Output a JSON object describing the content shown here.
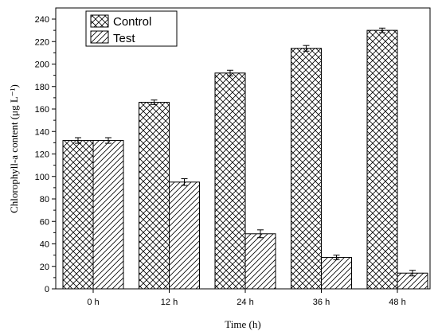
{
  "chart_data": {
    "type": "bar",
    "title": "",
    "xlabel": "Time  (h)",
    "ylabel": "Chlorophyll-a content (μg L⁻¹)",
    "categories": [
      "0 h",
      "12 h",
      "24 h",
      "36 h",
      "48 h"
    ],
    "ylim": [
      0,
      240
    ],
    "yticks": [
      0,
      20,
      40,
      60,
      80,
      100,
      120,
      140,
      160,
      180,
      200,
      220,
      240
    ],
    "grid": false,
    "legend_position": "top-left",
    "series": [
      {
        "name": "Control",
        "pattern": "crosshatch",
        "values": [
          132,
          166,
          192,
          214,
          230
        ],
        "errors": [
          2.5,
          2,
          2.5,
          2.5,
          2
        ]
      },
      {
        "name": "Test",
        "pattern": "diagonal",
        "values": [
          132,
          95,
          49,
          28,
          14
        ],
        "errors": [
          2.5,
          3,
          3.5,
          2,
          2.5
        ]
      }
    ]
  }
}
